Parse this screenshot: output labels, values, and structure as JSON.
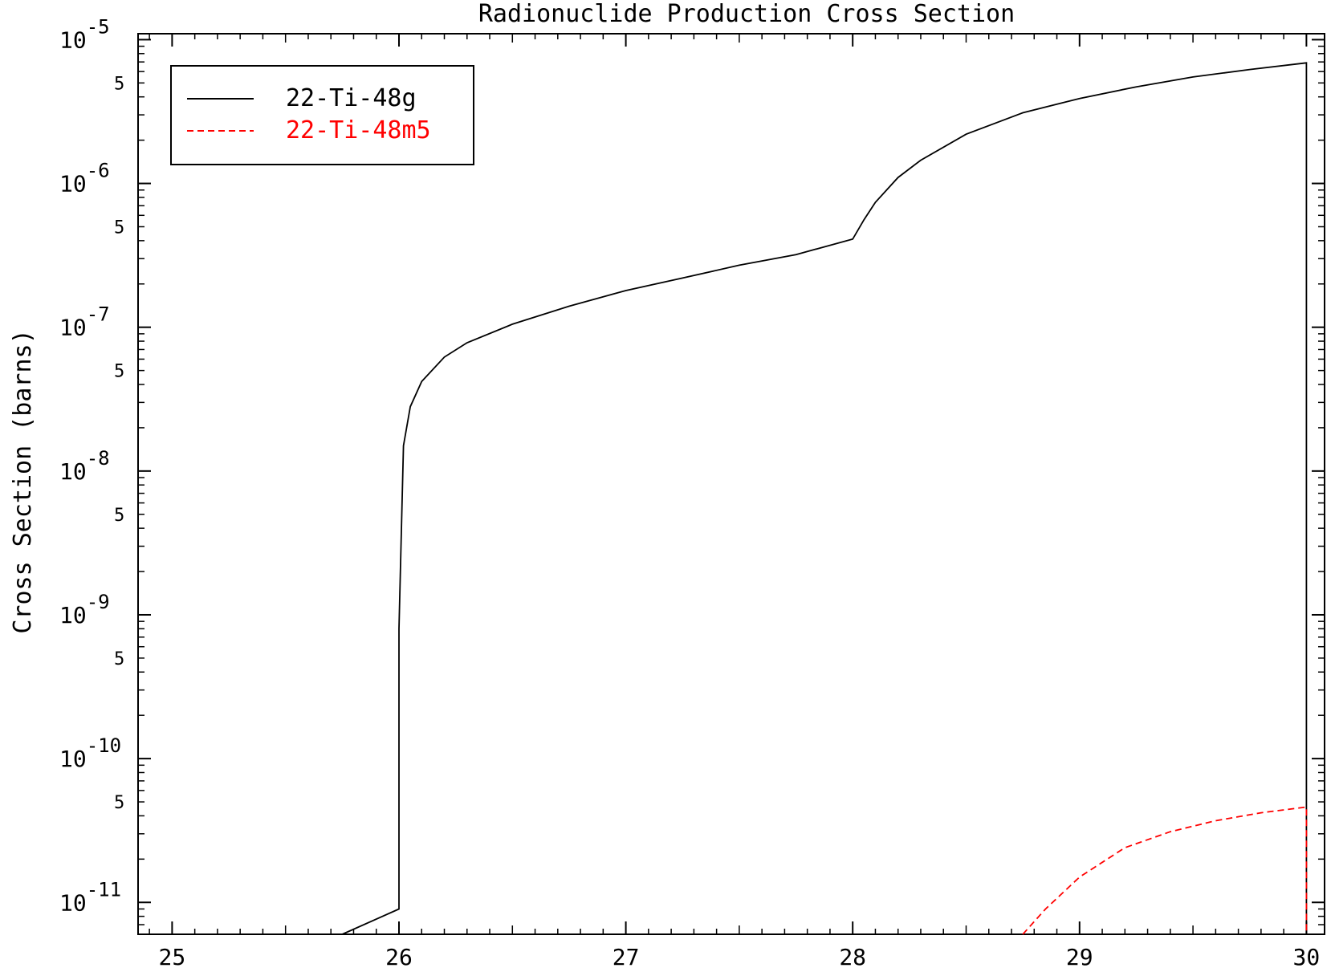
{
  "chart_data": {
    "type": "line",
    "title": "Radionuclide Production Cross Section",
    "xlabel": "",
    "ylabel": "Cross Section (barns)",
    "yscale": "log",
    "xlim": [
      24.85,
      30.08
    ],
    "ylim": [
      6e-12,
      1.1e-05
    ],
    "x_ticks": [
      {
        "value": 25,
        "label": "25"
      },
      {
        "value": 26,
        "label": "26"
      },
      {
        "value": 27,
        "label": "27"
      },
      {
        "value": 28,
        "label": "28"
      },
      {
        "value": 29,
        "label": "29"
      },
      {
        "value": 30,
        "label": "30"
      }
    ],
    "y_ticks": [
      {
        "value": 1e-05,
        "base": "10",
        "exp": "-5"
      },
      {
        "value": 1e-06,
        "base": "10",
        "exp": "-6"
      },
      {
        "value": 1e-07,
        "base": "10",
        "exp": "-7"
      },
      {
        "value": 1e-08,
        "base": "10",
        "exp": "-8"
      },
      {
        "value": 1e-09,
        "base": "10",
        "exp": "-9"
      },
      {
        "value": 1e-10,
        "base": "10",
        "exp": "-10"
      },
      {
        "value": 1e-11,
        "base": "10",
        "exp": "-11"
      }
    ],
    "y_minor_labels": [
      {
        "value": 5e-06,
        "label": "5"
      },
      {
        "value": 5e-07,
        "label": "5"
      },
      {
        "value": 5e-08,
        "label": "5"
      },
      {
        "value": 5e-09,
        "label": "5"
      },
      {
        "value": 5e-10,
        "label": "5"
      },
      {
        "value": 5e-11,
        "label": "5"
      }
    ],
    "legend_position": "top-left",
    "grid": false,
    "series": [
      {
        "name": "22-Ti-48g",
        "color": "#000000",
        "dash": "solid",
        "points": [
          [
            25.75,
            6e-12
          ],
          [
            26.0,
            9e-12
          ],
          [
            26.0,
            8e-10
          ],
          [
            26.02,
            1.5e-08
          ],
          [
            26.05,
            2.8e-08
          ],
          [
            26.1,
            4.2e-08
          ],
          [
            26.2,
            6.2e-08
          ],
          [
            26.3,
            7.8e-08
          ],
          [
            26.5,
            1.05e-07
          ],
          [
            26.75,
            1.4e-07
          ],
          [
            27.0,
            1.8e-07
          ],
          [
            27.25,
            2.2e-07
          ],
          [
            27.5,
            2.7e-07
          ],
          [
            27.75,
            3.2e-07
          ],
          [
            28.0,
            4.1e-07
          ],
          [
            28.05,
            5.6e-07
          ],
          [
            28.1,
            7.4e-07
          ],
          [
            28.2,
            1.1e-06
          ],
          [
            28.3,
            1.45e-06
          ],
          [
            28.5,
            2.2e-06
          ],
          [
            28.75,
            3.1e-06
          ],
          [
            29.0,
            3.9e-06
          ],
          [
            29.25,
            4.7e-06
          ],
          [
            29.5,
            5.5e-06
          ],
          [
            29.75,
            6.2e-06
          ],
          [
            30.0,
            6.9e-06
          ],
          [
            30.0,
            6e-12
          ]
        ]
      },
      {
        "name": "22-Ti-48m5",
        "color": "#ff0000",
        "dash": "dashed",
        "points": [
          [
            28.75,
            6e-12
          ],
          [
            28.85,
            9e-12
          ],
          [
            29.0,
            1.5e-11
          ],
          [
            29.2,
            2.4e-11
          ],
          [
            29.4,
            3.1e-11
          ],
          [
            29.6,
            3.7e-11
          ],
          [
            29.8,
            4.2e-11
          ],
          [
            30.0,
            4.6e-11
          ],
          [
            30.0,
            6e-12
          ]
        ]
      }
    ]
  }
}
